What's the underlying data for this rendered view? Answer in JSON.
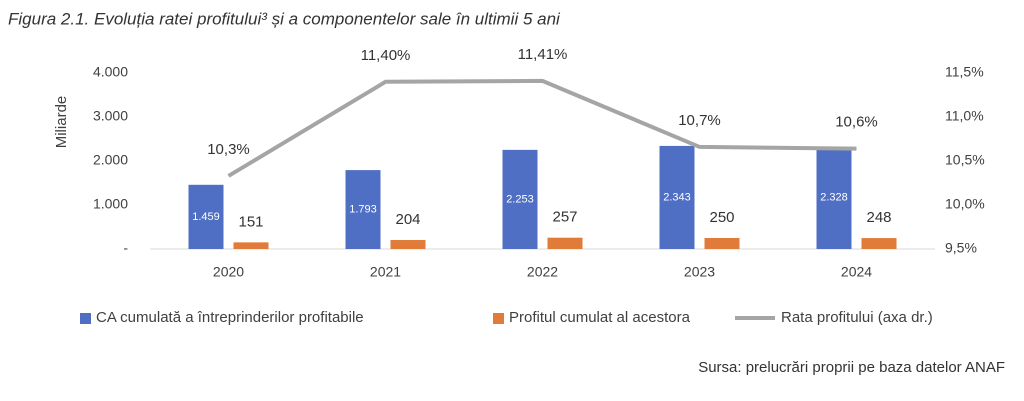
{
  "chart_data": {
    "type": "bar",
    "title": "Figura 2.1. Evoluția ratei profitului³ și a componentelor sale în ultimii 5 ani",
    "ylabel": "Miliarde",
    "source": "Sursa: prelucrări proprii pe baza datelor ANAF",
    "categories": [
      "2020",
      "2021",
      "2022",
      "2023",
      "2024"
    ],
    "ylim": [
      0,
      4000
    ],
    "yticks": [
      {
        "value": 0,
        "label": "-"
      },
      {
        "value": 1000,
        "label": "1.000"
      },
      {
        "value": 2000,
        "label": "2.000"
      },
      {
        "value": 3000,
        "label": "3.000"
      },
      {
        "value": 4000,
        "label": "4.000"
      }
    ],
    "y2lim": [
      9.5,
      11.5
    ],
    "y2ticks": [
      {
        "value": 9.5,
        "label": "9,5%"
      },
      {
        "value": 10,
        "label": "10,0%"
      },
      {
        "value": 10.5,
        "label": "10,5%"
      },
      {
        "value": 11,
        "label": "11,0%"
      },
      {
        "value": 11.5,
        "label": "11,5%"
      }
    ],
    "legend": "bottom",
    "series": [
      {
        "name": "CA cumulată a întreprinderilor profitabile",
        "type": "bar",
        "color": "#4f6fc4",
        "values": [
          1459,
          1793,
          2253,
          2343,
          2328
        ],
        "value_labels": [
          "1.459",
          "1.793",
          "2.253",
          "2.343",
          "2.328"
        ]
      },
      {
        "name": "Profitul cumulat al acestora",
        "type": "bar",
        "color": "#e07b39",
        "values": [
          151,
          204,
          257,
          250,
          248
        ]
      },
      {
        "name": "Rata profitului (axa dr.)",
        "type": "line",
        "axis": "y2",
        "color": "#a5a5a5",
        "values": [
          10.33,
          11.4,
          11.41,
          10.66,
          10.64
        ],
        "value_labels": [
          "10,3%",
          "11,40%",
          "11,41%",
          "10,7%",
          "10,6%"
        ]
      }
    ]
  }
}
